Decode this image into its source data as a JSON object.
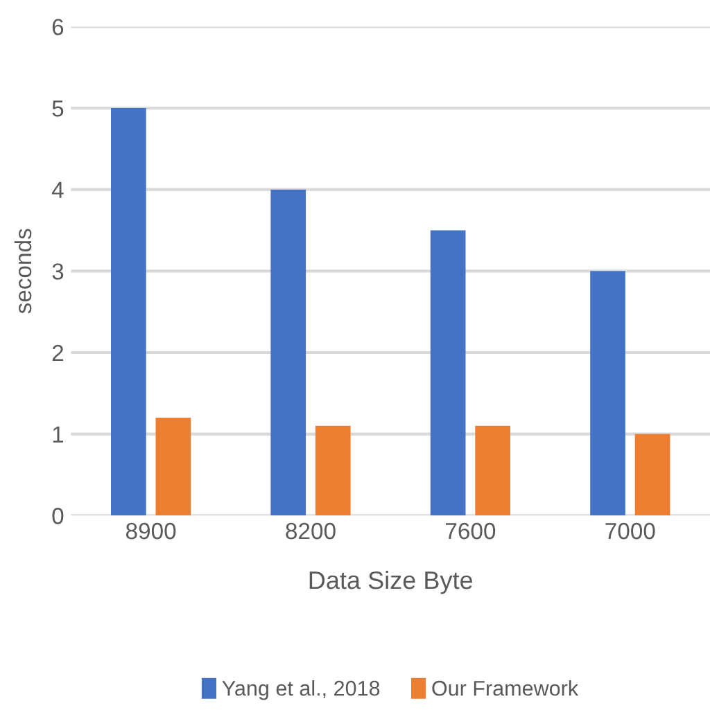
{
  "chart_data": {
    "type": "bar",
    "xlabel": "Data Size Byte",
    "ylabel": "seconds",
    "categories": [
      "8900",
      "8200",
      "7600",
      "7000"
    ],
    "series": [
      {
        "name": "Yang et al., 2018",
        "color": "#4472c4",
        "values": [
          5,
          4,
          3.5,
          3
        ]
      },
      {
        "name": "Our Framework",
        "color": "#ed7d31",
        "values": [
          1.2,
          1.1,
          1.1,
          1.0
        ]
      }
    ],
    "ylim": [
      0,
      6
    ],
    "yticks": [
      0,
      1,
      2,
      3,
      4,
      5,
      6
    ],
    "grid": "y",
    "legend": "bottom"
  }
}
